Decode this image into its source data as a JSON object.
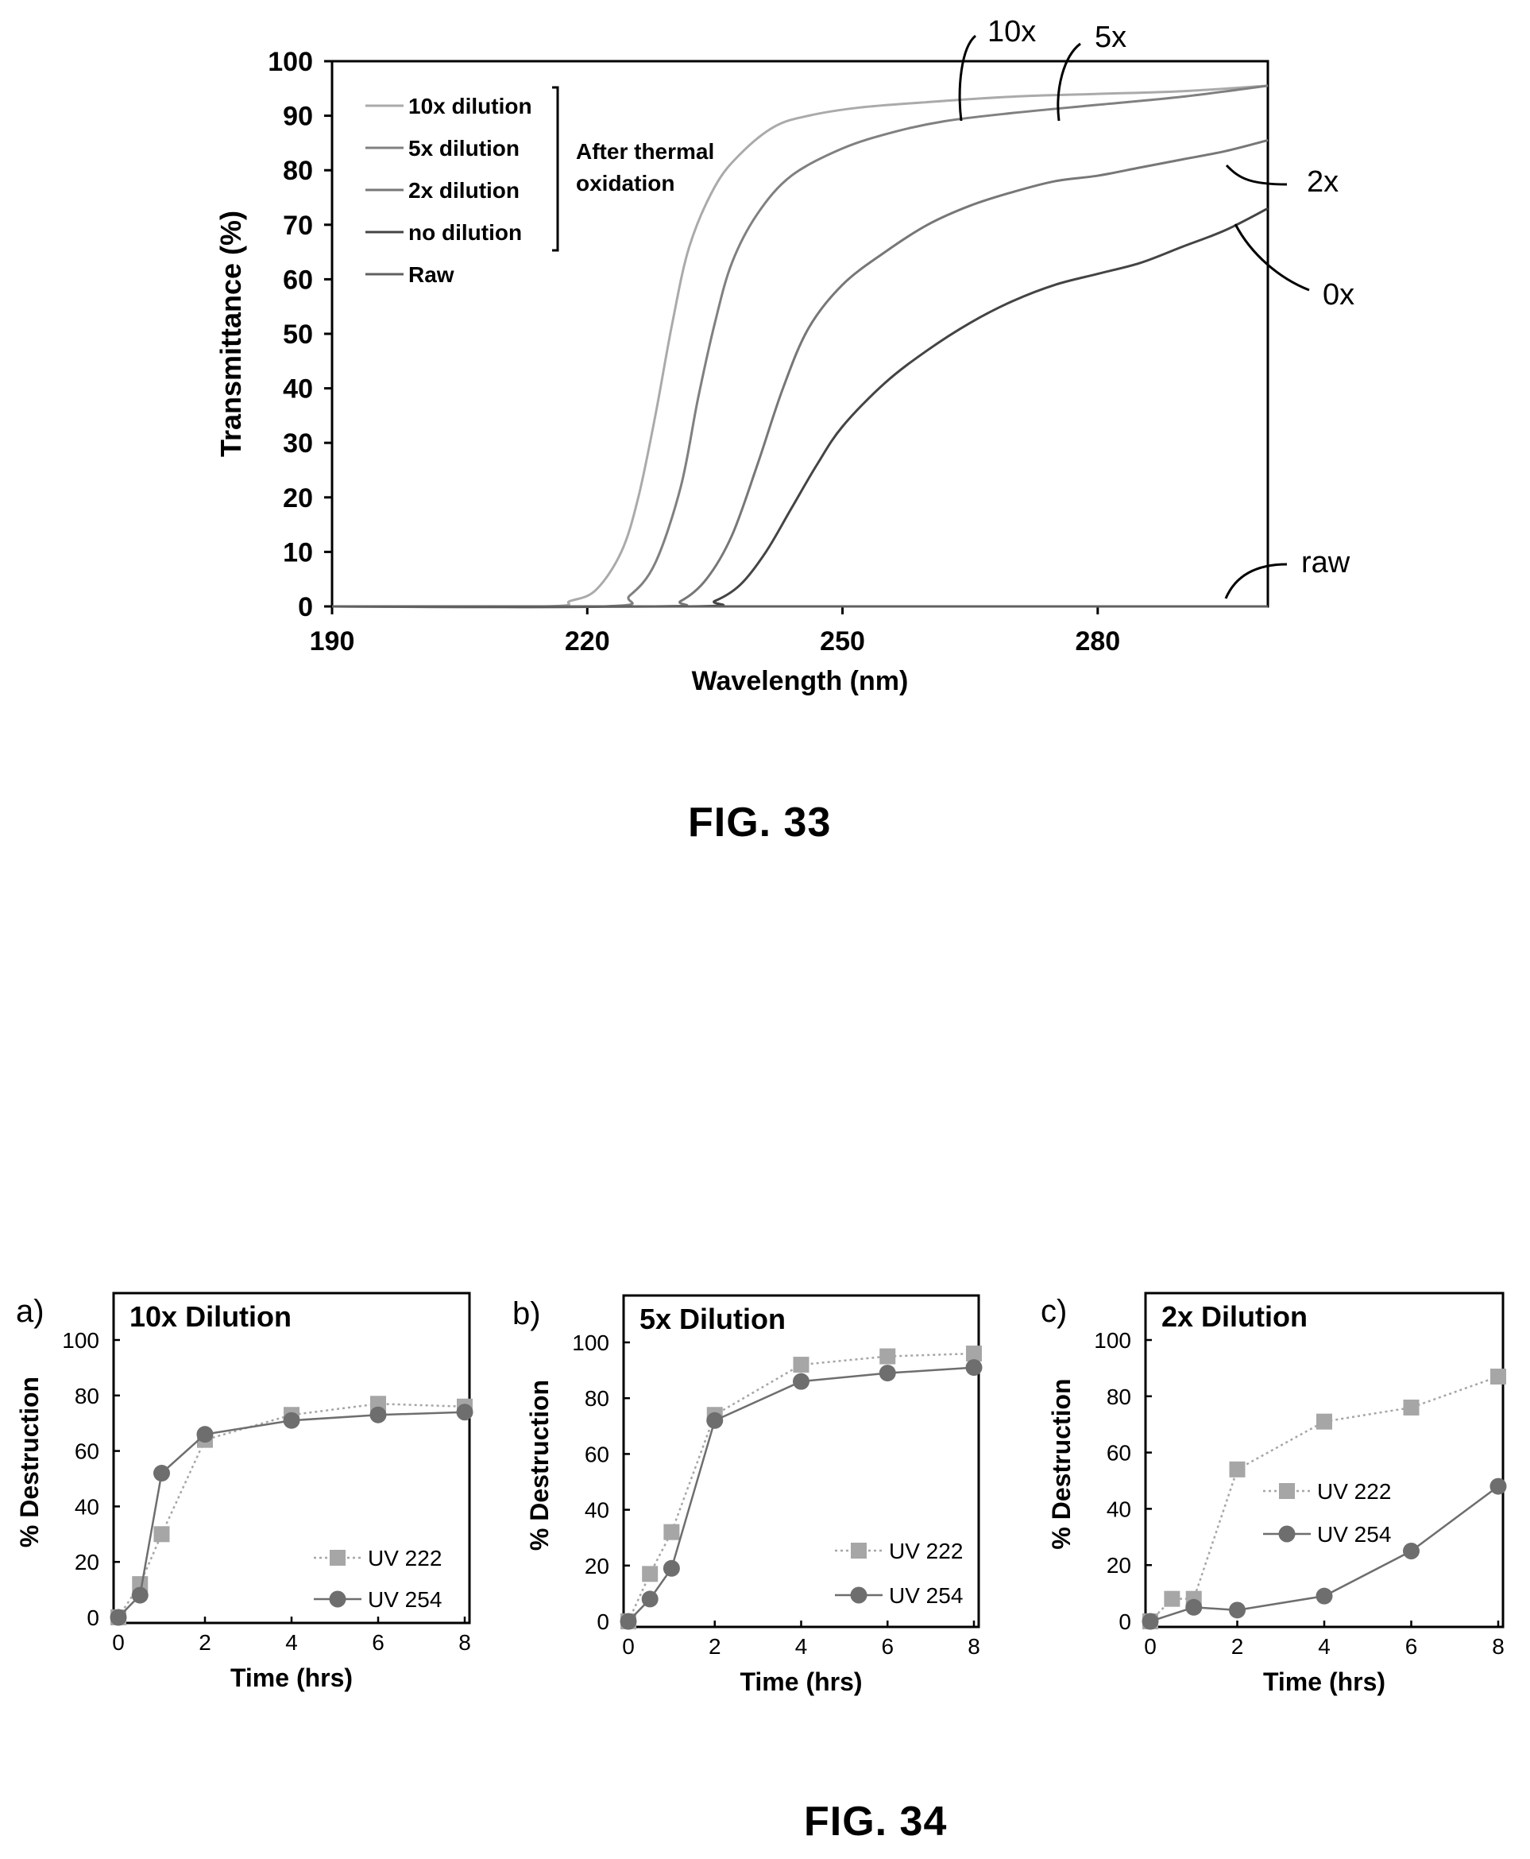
{
  "figures": {
    "fig33_caption": "FIG. 33",
    "fig34_caption": "FIG. 34"
  },
  "colors": {
    "axis": "#000000",
    "ten_x": "#aaaaaa",
    "five_x": "#808080",
    "two_x": "#777777",
    "zero_x": "#444444",
    "raw": "#606060",
    "uv222": "#a6a6a6",
    "uv254": "#6e6e6e"
  },
  "chart_data": [
    {
      "id": "fig33",
      "type": "line",
      "xlabel": "Wavelength (nm)",
      "ylabel": "Transmittance (%)",
      "xlim": [
        190,
        300
      ],
      "ylim": [
        0,
        100
      ],
      "xticks": [
        190,
        220,
        250,
        280
      ],
      "yticks": [
        0,
        10,
        20,
        30,
        40,
        50,
        60,
        70,
        80,
        90,
        100
      ],
      "legend": {
        "placement": "top-left",
        "entries": [
          "10x dilution",
          "5x dilution",
          "2x dilution",
          "no dilution",
          "Raw"
        ],
        "group_label": "After thermal oxidation",
        "group_label_lines": [
          "After thermal",
          "oxidation"
        ]
      },
      "annotations": [
        {
          "text": "10x",
          "series": "10x dilution"
        },
        {
          "text": "5x",
          "series": "5x dilution"
        },
        {
          "text": "2x",
          "series": "2x dilution"
        },
        {
          "text": "0x",
          "series": "no dilution"
        },
        {
          "text": "raw",
          "series": "Raw"
        }
      ],
      "series": [
        {
          "name": "10x dilution",
          "color_key": "ten_x",
          "points": [
            [
              190,
              0
            ],
            [
              215,
              0
            ],
            [
              218,
              1
            ],
            [
              221,
              3
            ],
            [
              224,
              10
            ],
            [
              226,
              20
            ],
            [
              228,
              35
            ],
            [
              230,
              52
            ],
            [
              232,
              66
            ],
            [
              235,
              77
            ],
            [
              238,
              83
            ],
            [
              242,
              88
            ],
            [
              246,
              90
            ],
            [
              252,
              91.5
            ],
            [
              260,
              92.5
            ],
            [
              270,
              93.5
            ],
            [
              280,
              94
            ],
            [
              290,
              94.5
            ],
            [
              300,
              95.5
            ]
          ]
        },
        {
          "name": "5x dilution",
          "color_key": "five_x",
          "points": [
            [
              190,
              0
            ],
            [
              222,
              0
            ],
            [
              225,
              2
            ],
            [
              228,
              8
            ],
            [
              231,
              22
            ],
            [
              233,
              38
            ],
            [
              235,
              52
            ],
            [
              237,
              63
            ],
            [
              240,
              72
            ],
            [
              244,
              79
            ],
            [
              250,
              84
            ],
            [
              256,
              87
            ],
            [
              262,
              89
            ],
            [
              270,
              90.5
            ],
            [
              280,
              92
            ],
            [
              290,
              93.5
            ],
            [
              300,
              95.5
            ]
          ]
        },
        {
          "name": "2x dilution",
          "color_key": "two_x",
          "points": [
            [
              190,
              0
            ],
            [
              228,
              0
            ],
            [
              231,
              1
            ],
            [
              234,
              5
            ],
            [
              237,
              13
            ],
            [
              240,
              26
            ],
            [
              243,
              40
            ],
            [
              246,
              51
            ],
            [
              250,
              59
            ],
            [
              255,
              65
            ],
            [
              260,
              70
            ],
            [
              265,
              73.5
            ],
            [
              270,
              76
            ],
            [
              275,
              78
            ],
            [
              280,
              79
            ],
            [
              285,
              80.5
            ],
            [
              290,
              82
            ],
            [
              295,
              83.5
            ],
            [
              300,
              85.5
            ]
          ]
        },
        {
          "name": "no dilution",
          "color_key": "zero_x",
          "points": [
            [
              190,
              0
            ],
            [
              232,
              0
            ],
            [
              235,
              1
            ],
            [
              238,
              4
            ],
            [
              241,
              10
            ],
            [
              244,
              18
            ],
            [
              247,
              26
            ],
            [
              250,
              33
            ],
            [
              255,
              41
            ],
            [
              260,
              47
            ],
            [
              265,
              52
            ],
            [
              270,
              56
            ],
            [
              275,
              59
            ],
            [
              280,
              61
            ],
            [
              285,
              63
            ],
            [
              290,
              66
            ],
            [
              295,
              69
            ],
            [
              300,
              73
            ]
          ]
        },
        {
          "name": "Raw",
          "color_key": "raw",
          "points": [
            [
              190,
              0
            ],
            [
              300,
              0
            ]
          ]
        }
      ]
    },
    {
      "id": "fig34a",
      "type": "line",
      "panel_letter": "a)",
      "title": "10x Dilution",
      "xlabel": "Time (hrs)",
      "ylabel": "% Destruction",
      "xlim": [
        0,
        8
      ],
      "ylim": [
        0,
        100
      ],
      "xticks": [
        0,
        2,
        4,
        6,
        8
      ],
      "yticks": [
        0,
        20,
        40,
        60,
        80,
        100
      ],
      "legend": {
        "placement": "bottom-right",
        "entries": [
          "UV 222",
          "UV 254"
        ]
      },
      "series": [
        {
          "name": "UV 222",
          "marker": "square",
          "color_key": "uv222",
          "dashed": true,
          "x": [
            0,
            0.5,
            1,
            2,
            4,
            6,
            8
          ],
          "y": [
            0,
            12,
            30,
            64,
            73,
            77,
            76
          ]
        },
        {
          "name": "UV 254",
          "marker": "circle",
          "color_key": "uv254",
          "dashed": false,
          "x": [
            0,
            0.5,
            1,
            2,
            4,
            6,
            8
          ],
          "y": [
            0,
            8,
            52,
            66,
            71,
            73,
            74
          ]
        }
      ]
    },
    {
      "id": "fig34b",
      "type": "line",
      "panel_letter": "b)",
      "title": "5x Dilution",
      "xlabel": "Time (hrs)",
      "ylabel": "% Destruction",
      "xlim": [
        0,
        8
      ],
      "ylim": [
        0,
        100
      ],
      "xticks": [
        0,
        2,
        4,
        6,
        8
      ],
      "yticks": [
        0,
        20,
        40,
        60,
        80,
        100
      ],
      "legend": {
        "placement": "bottom-right",
        "entries": [
          "UV 222",
          "UV 254"
        ]
      },
      "series": [
        {
          "name": "UV 222",
          "marker": "square",
          "color_key": "uv222",
          "dashed": true,
          "x": [
            0,
            0.5,
            1,
            2,
            4,
            6,
            8
          ],
          "y": [
            0,
            17,
            32,
            74,
            92,
            95,
            96
          ]
        },
        {
          "name": "UV 254",
          "marker": "circle",
          "color_key": "uv254",
          "dashed": false,
          "x": [
            0,
            0.5,
            1,
            2,
            4,
            6,
            8
          ],
          "y": [
            0,
            8,
            19,
            72,
            86,
            89,
            91
          ]
        }
      ]
    },
    {
      "id": "fig34c",
      "type": "line",
      "panel_letter": "c)",
      "title": "2x Dilution",
      "xlabel": "Time (hrs)",
      "ylabel": "% Destruction",
      "xlim": [
        0,
        8
      ],
      "ylim": [
        0,
        100
      ],
      "xticks": [
        0,
        2,
        4,
        6,
        8
      ],
      "yticks": [
        0,
        20,
        40,
        60,
        80,
        100
      ],
      "legend": {
        "placement": "center-left",
        "entries": [
          "UV 222",
          "UV 254"
        ]
      },
      "series": [
        {
          "name": "UV 222",
          "marker": "square",
          "color_key": "uv222",
          "dashed": true,
          "x": [
            0,
            0.5,
            1,
            2,
            4,
            6,
            8
          ],
          "y": [
            0,
            8,
            8,
            54,
            71,
            76,
            87
          ]
        },
        {
          "name": "UV 254",
          "marker": "circle",
          "color_key": "uv254",
          "dashed": false,
          "x": [
            0,
            1,
            2,
            4,
            6,
            8
          ],
          "y": [
            0,
            5,
            4,
            9,
            25,
            48
          ]
        }
      ]
    }
  ]
}
